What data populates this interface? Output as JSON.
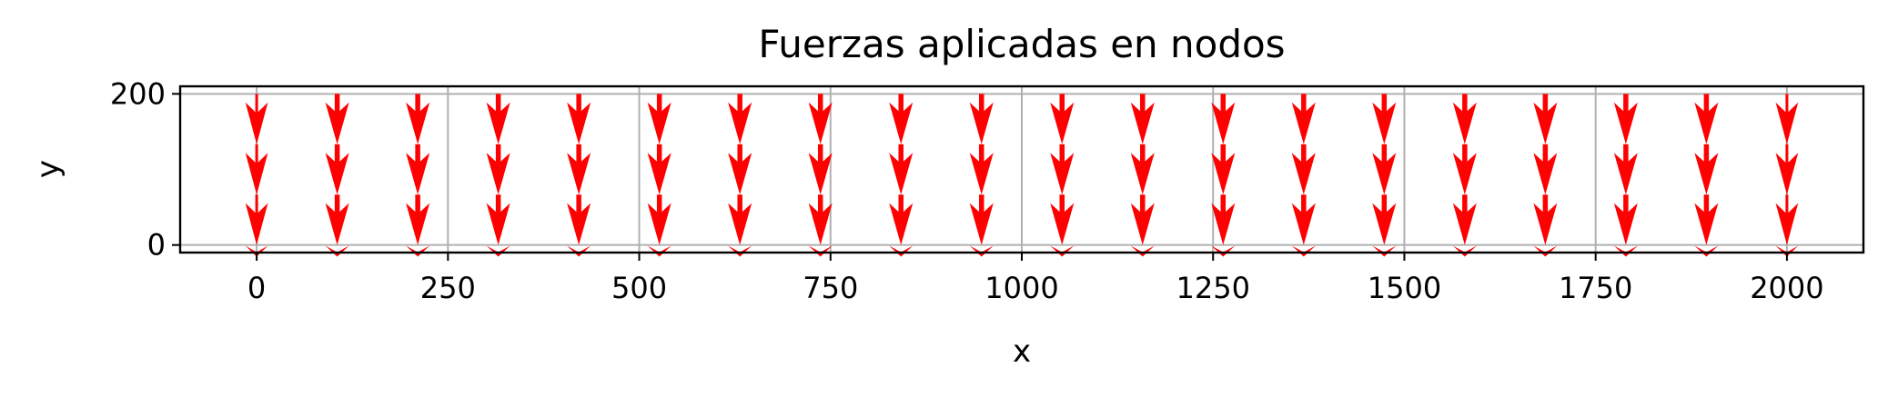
{
  "chart_data": {
    "type": "quiver",
    "title": "Fuerzas aplicadas en nodos",
    "xlabel": "x",
    "ylabel": "y",
    "xlim": [
      -100,
      2100
    ],
    "ylim": [
      -10,
      210
    ],
    "x_ticks": [
      0,
      250,
      500,
      750,
      1000,
      1250,
      1500,
      1750,
      2000
    ],
    "y_ticks": [
      0,
      200
    ],
    "grid": true,
    "arrow_color": "#ff0000",
    "grid_color": "#b0b0b0",
    "node_x": [
      0,
      105.26,
      210.53,
      315.79,
      421.05,
      526.32,
      631.58,
      736.84,
      842.11,
      947.37,
      1052.63,
      1157.89,
      1263.16,
      1368.42,
      1473.68,
      1578.95,
      1684.21,
      1789.47,
      1894.74,
      2000
    ],
    "node_y": [
      0,
      66.67,
      133.33,
      200
    ],
    "force_direction": "down"
  }
}
